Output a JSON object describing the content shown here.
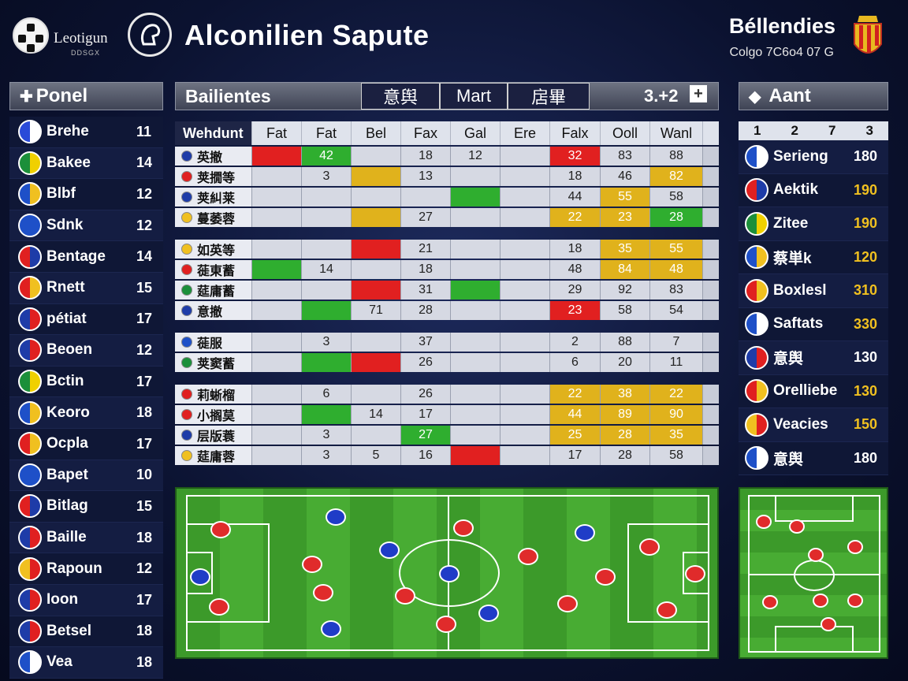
{
  "header": {
    "logo_text": "Leotigun",
    "logo_sub": "DDSGX",
    "title": "Alconilien Sapute",
    "right_title": "Béllendies",
    "right_sub": "Colgo 7C6o4 07 G"
  },
  "left_panel": {
    "title": "Ponel",
    "items": [
      {
        "name": "Brehe",
        "value": "11",
        "colors": [
          "#2a4ad8",
          "#fff"
        ]
      },
      {
        "name": "Bakee",
        "value": "14",
        "colors": [
          "#1b8f3a",
          "#f0d000"
        ]
      },
      {
        "name": "Blbf",
        "value": "12",
        "colors": [
          "#1e50c8",
          "#f0c020"
        ]
      },
      {
        "name": "Sdnk",
        "value": "12",
        "colors": [
          "#1e50c8",
          "#1e50c8"
        ]
      },
      {
        "name": "Bentage",
        "value": "14",
        "colors": [
          "#e02020",
          "#1e3ca8"
        ]
      },
      {
        "name": "Rnett",
        "value": "15",
        "colors": [
          "#e02020",
          "#f0c020"
        ]
      },
      {
        "name": "pétiat",
        "value": "17",
        "colors": [
          "#1e3ca8",
          "#e02020"
        ]
      },
      {
        "name": "Beoen",
        "value": "12",
        "colors": [
          "#1e3ca8",
          "#e02020"
        ]
      },
      {
        "name": "Bctin",
        "value": "17",
        "colors": [
          "#1b8f3a",
          "#f0d000"
        ]
      },
      {
        "name": "Keoro",
        "value": "18",
        "colors": [
          "#1e50c8",
          "#f0c020"
        ]
      },
      {
        "name": "Ocpla",
        "value": "17",
        "colors": [
          "#e02020",
          "#f0c020"
        ]
      },
      {
        "name": "Bapet",
        "value": "10",
        "colors": [
          "#1e50c8",
          "#1e50c8"
        ]
      },
      {
        "name": "Bitlag",
        "value": "15",
        "colors": [
          "#e02020",
          "#1e3ca8"
        ]
      },
      {
        "name": "Baille",
        "value": "18",
        "colors": [
          "#1e3ca8",
          "#e02020"
        ]
      },
      {
        "name": "Rapoun",
        "value": "12",
        "colors": [
          "#f0c020",
          "#e02020"
        ]
      },
      {
        "name": "Ioon",
        "value": "17",
        "colors": [
          "#1e3ca8",
          "#e02020"
        ]
      },
      {
        "name": "Betsel",
        "value": "18",
        "colors": [
          "#1e3ca8",
          "#e02020"
        ]
      },
      {
        "name": "Vea",
        "value": "18",
        "colors": [
          "#1e50c8",
          "#fff"
        ]
      }
    ]
  },
  "middle_panel": {
    "title": "Bailientes",
    "segments": [
      "意舆",
      "Mart",
      "扂畢"
    ],
    "score": "3.+2"
  },
  "table": {
    "headers": [
      "Wehdunt",
      "Fat",
      "Fat",
      "Bel",
      "Fax",
      "Gal",
      "Ere",
      "Falx",
      "Ooll",
      "Wanl"
    ],
    "groups": [
      [
        {
          "team": "英撤",
          "cells": [
            "",
            "",
            "42",
            "",
            "18",
            "12",
            "",
            "32",
            "83",
            "88"
          ],
          "hl": [
            "",
            "r",
            "g",
            "",
            "",
            "",
            "",
            "r",
            "",
            ""
          ],
          "flag": "#1e3ca8"
        },
        {
          "team": "荚撊等",
          "cells": [
            "",
            "",
            "3",
            "",
            "13",
            "",
            "",
            "18",
            "46",
            "82"
          ],
          "hl": [
            "",
            "",
            "",
            "y",
            "",
            "",
            "",
            "",
            "",
            "y"
          ],
          "flag": "#e02020"
        },
        {
          "team": "荚糾莱",
          "cells": [
            "",
            "",
            "",
            "",
            "",
            "",
            "",
            "44",
            "55",
            "58"
          ],
          "hl": [
            "",
            "",
            "",
            "",
            "",
            "g",
            "",
            "",
            "y",
            ""
          ],
          "flag": "#1e3ca8"
        },
        {
          "team": "蔓萎蓉",
          "cells": [
            "",
            "",
            "",
            "",
            "27",
            "",
            "",
            "22",
            "23",
            "28"
          ],
          "hl": [
            "",
            "",
            "",
            "y",
            "",
            "",
            "",
            "y",
            "y",
            "g"
          ],
          "flag": "#f0c020"
        }
      ],
      [
        {
          "team": "如英等",
          "cells": [
            "",
            "",
            "",
            "",
            "21",
            "",
            "",
            "18",
            "35",
            "55"
          ],
          "hl": [
            "",
            "",
            "",
            "r",
            "",
            "",
            "",
            "",
            "y",
            "y"
          ],
          "flag": "#f0c020"
        },
        {
          "team": "蓰東蓄",
          "cells": [
            "",
            "",
            "14",
            "",
            "18",
            "",
            "",
            "48",
            "84",
            "48"
          ],
          "hl": [
            "",
            "g",
            "",
            "",
            "",
            "",
            "",
            "",
            "y",
            "y"
          ],
          "flag": "#e02020"
        },
        {
          "team": "莚庸蓄",
          "cells": [
            "",
            "",
            "",
            "",
            "31",
            "",
            "",
            "29",
            "92",
            "83"
          ],
          "hl": [
            "",
            "",
            "",
            "r",
            "",
            "g",
            "",
            "",
            "",
            ""
          ],
          "flag": "#1b8f3a"
        },
        {
          "team": "意撤",
          "cells": [
            "",
            "",
            "",
            "71",
            "28",
            "",
            "",
            "23",
            "58",
            "54"
          ],
          "hl": [
            "",
            "",
            "g",
            "",
            "",
            "",
            "",
            "r",
            "",
            ""
          ],
          "flag": "#1e3ca8"
        }
      ],
      [
        {
          "team": "蓰服",
          "cells": [
            "",
            "",
            "3",
            "",
            "37",
            "",
            "",
            "2",
            "88",
            "7"
          ],
          "hl": [
            "",
            "",
            "",
            "",
            "",
            "",
            "",
            "",
            "",
            ""
          ],
          "flag": "#1e50c8"
        },
        {
          "team": "荚窦蓄",
          "cells": [
            "",
            "",
            "",
            "",
            "26",
            "",
            "",
            "6",
            "20",
            "11"
          ],
          "hl": [
            "",
            "",
            "g",
            "r",
            "",
            "",
            "",
            "",
            "",
            ""
          ],
          "flag": "#1b8f3a"
        }
      ],
      [
        {
          "team": "莉蜥榴",
          "cells": [
            "",
            "",
            "6",
            "",
            "26",
            "",
            "",
            "22",
            "38",
            "22"
          ],
          "hl": [
            "",
            "",
            "",
            "",
            "",
            "",
            "",
            "y",
            "y",
            "y"
          ],
          "flag": "#e02020"
        },
        {
          "team": "小搁莫",
          "cells": [
            "",
            "",
            "",
            "14",
            "17",
            "",
            "",
            "44",
            "89",
            "90"
          ],
          "hl": [
            "",
            "",
            "g",
            "",
            "",
            "",
            "",
            "y",
            "y",
            "y"
          ],
          "flag": "#e02020"
        },
        {
          "team": "层版蓑",
          "cells": [
            "",
            "",
            "3",
            "",
            "27",
            "",
            "",
            "25",
            "28",
            "35"
          ],
          "hl": [
            "",
            "",
            "",
            "",
            "g",
            "",
            "",
            "y",
            "y",
            "y"
          ],
          "flag": "#1e3ca8"
        },
        {
          "team": "莚庸蓉",
          "cells": [
            "",
            "",
            "3",
            "5",
            "16",
            "",
            "",
            "17",
            "28",
            "58"
          ],
          "hl": [
            "",
            "",
            "",
            "",
            "",
            "r",
            "",
            "",
            "",
            ""
          ],
          "flag": "#f0c020"
        }
      ]
    ]
  },
  "right_panel": {
    "title": "Aant",
    "num_headers": [
      "1",
      "2",
      "7",
      "3"
    ],
    "items": [
      {
        "name": "Serieng",
        "value": "180",
        "colors": [
          "#1e50c8",
          "#fff"
        ]
      },
      {
        "name": "Aektik",
        "value": "190",
        "colors": [
          "#e02020",
          "#1e3ca8"
        ]
      },
      {
        "name": "Zitee",
        "value": "190",
        "colors": [
          "#1b8f3a",
          "#f0d000"
        ]
      },
      {
        "name": "蔡単k",
        "value": "120",
        "colors": [
          "#1e50c8",
          "#f0c020"
        ]
      },
      {
        "name": "Boxlesl",
        "value": "310",
        "colors": [
          "#e02020",
          "#f0c020"
        ]
      },
      {
        "name": "Saftats",
        "value": "330",
        "colors": [
          "#1e50c8",
          "#fff"
        ]
      },
      {
        "name": "意舆",
        "value": "130",
        "colors": [
          "#1e3ca8",
          "#e02020"
        ]
      },
      {
        "name": "Orelliebe",
        "value": "130",
        "colors": [
          "#e02020",
          "#f0c020"
        ]
      },
      {
        "name": "Veacies",
        "value": "150",
        "colors": [
          "#f0c020",
          "#e02020"
        ]
      },
      {
        "name": "意舆",
        "value": "180",
        "colors": [
          "#1e50c8",
          "#fff"
        ]
      }
    ]
  },
  "colors": {
    "red": "#e12020",
    "green": "#2fae2f",
    "yellow": "#e0b21c",
    "navy": "#0f1736"
  }
}
